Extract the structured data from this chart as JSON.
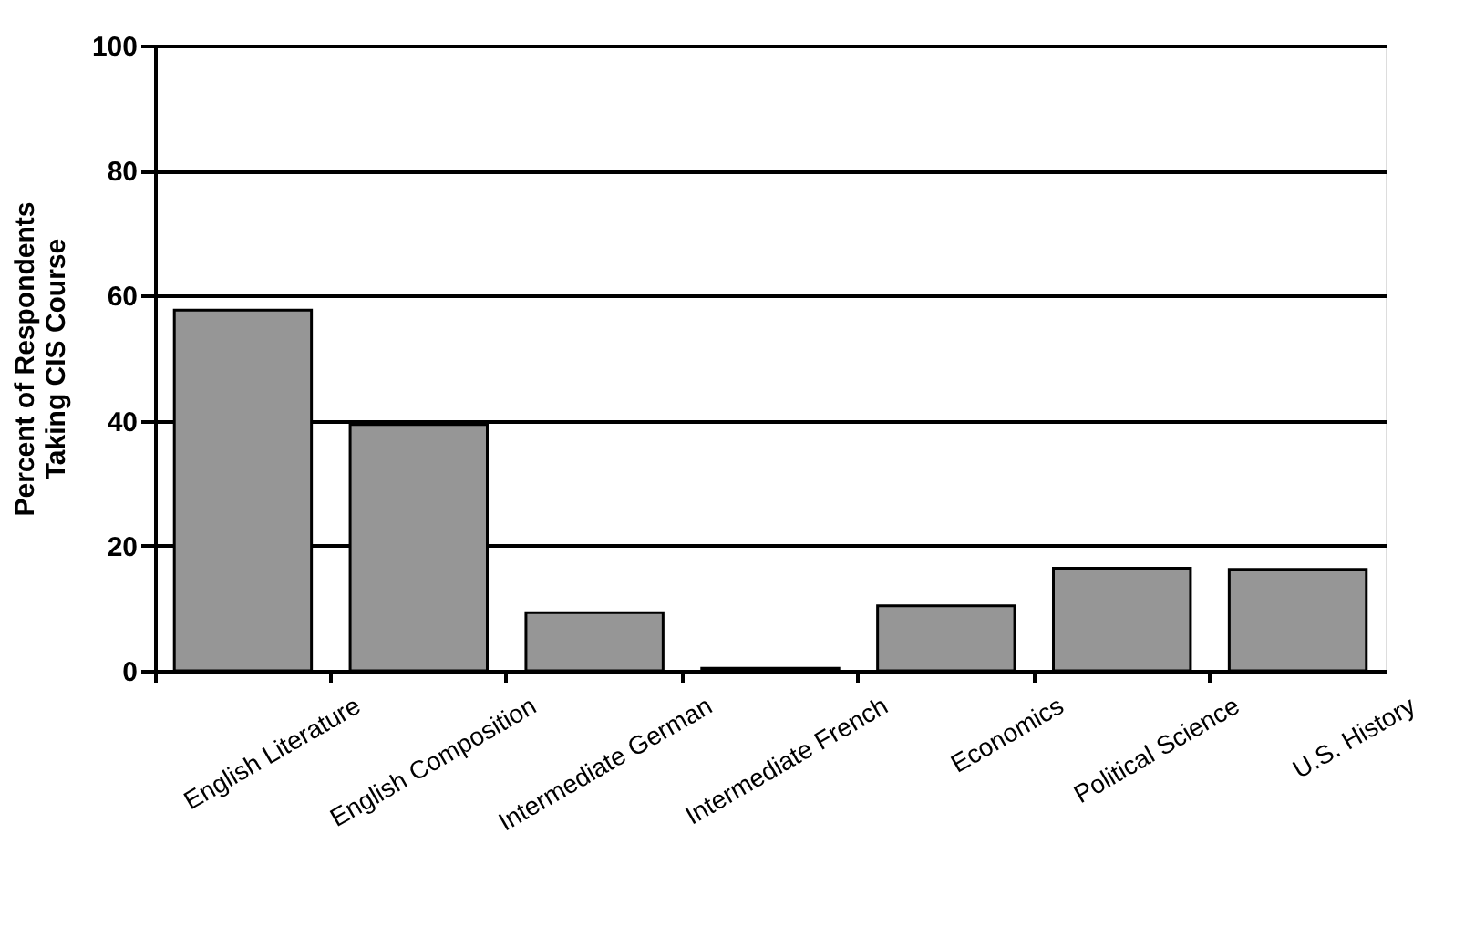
{
  "chart_data": {
    "type": "bar",
    "ylabel": "Percent of Respondents\nTaking CIS Course",
    "categories": [
      "English Literature",
      "English Composition",
      "Intermediate German",
      "Intermediate French",
      "Economics",
      "Political Science",
      "U.S. History"
    ],
    "values": [
      57.7,
      39.4,
      9.3,
      0.4,
      10.4,
      16.4,
      16.2
    ],
    "color": "#969696",
    "ylim": [
      0,
      100
    ],
    "yticks": [
      0,
      20,
      40,
      60,
      80,
      100
    ],
    "grid": "y"
  }
}
